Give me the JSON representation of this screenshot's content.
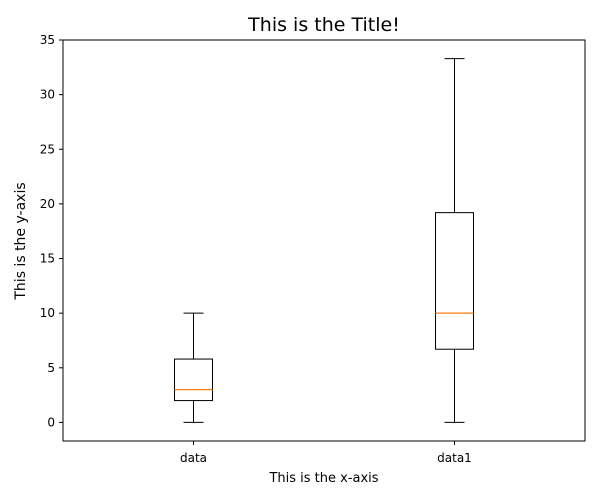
{
  "chart_data": {
    "type": "box",
    "title": "This is the Title!",
    "xlabel": "This is the x-axis",
    "ylabel": "This is the y-axis",
    "categories": [
      "data",
      "data1"
    ],
    "series": [
      {
        "name": "data",
        "whisker_low": 0,
        "q1": 2,
        "median": 3,
        "q3": 5.8,
        "whisker_high": 10
      },
      {
        "name": "data1",
        "whisker_low": 0,
        "q1": 6.7,
        "median": 10,
        "q3": 19.2,
        "whisker_high": 33.3
      }
    ],
    "yticks": [
      0,
      5,
      10,
      15,
      20,
      25,
      30,
      35
    ],
    "ylim": [
      -1.7,
      35
    ],
    "grid": false,
    "colors": {
      "box": "#000000",
      "median": "#ff7f0e"
    }
  }
}
